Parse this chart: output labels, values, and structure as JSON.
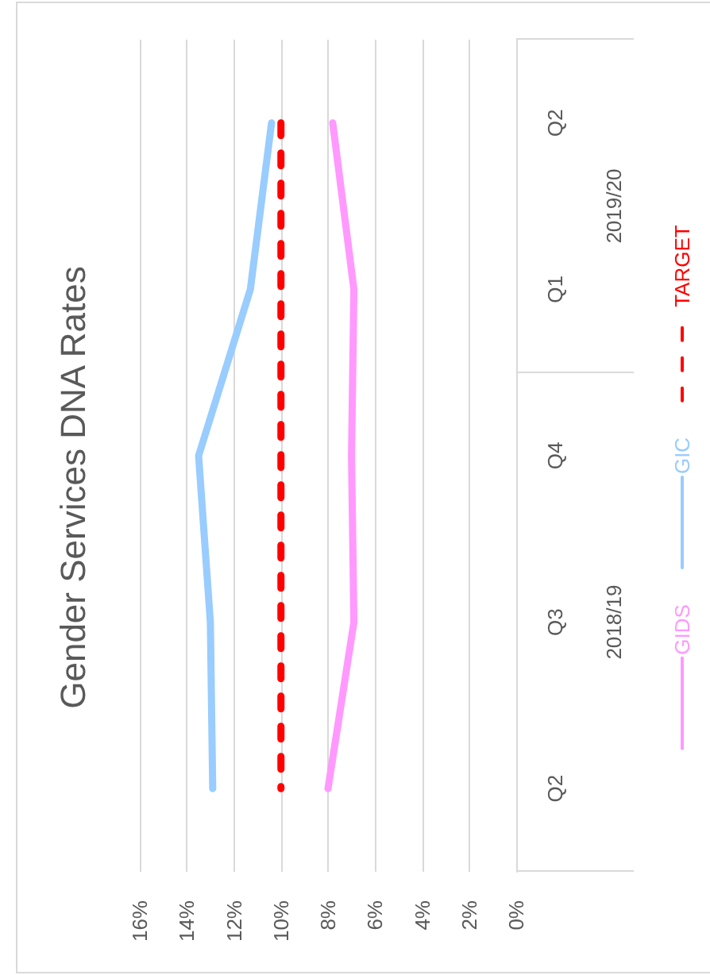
{
  "chart_data": {
    "type": "line",
    "orientation": "horizontal",
    "title": "Gender Services DNA Rates",
    "categories": [
      "Q2",
      "Q1",
      "Q4",
      "Q3",
      "Q2"
    ],
    "series": [
      {
        "name": "GIDS",
        "color": "#ff99ff",
        "values": [
          7.8,
          6.9,
          7.0,
          6.9,
          8.0
        ]
      },
      {
        "name": "GIC",
        "color": "#99ccff",
        "values": [
          10.4,
          11.3,
          13.5,
          13.0,
          12.9
        ]
      },
      {
        "name": "TARGET",
        "color": "#ff0000",
        "values": [
          10,
          10,
          10,
          10,
          10
        ],
        "line_style": "dashed"
      }
    ],
    "xlim": [
      16,
      0
    ],
    "xticks": [
      {
        "value": 16,
        "label": "16%"
      },
      {
        "value": 14,
        "label": "14%"
      },
      {
        "value": 12,
        "label": "12%"
      },
      {
        "value": 10,
        "label": "10%"
      },
      {
        "value": 8,
        "label": "8%"
      },
      {
        "value": 6,
        "label": "6%"
      },
      {
        "value": 4,
        "label": "4%"
      },
      {
        "value": 2,
        "label": "2%"
      },
      {
        "value": 0,
        "label": "0%"
      }
    ],
    "grid": "x",
    "legend": "right",
    "marker": "none",
    "line_style": "solid",
    "annotations": [
      "2019/20",
      "2018/19"
    ]
  }
}
